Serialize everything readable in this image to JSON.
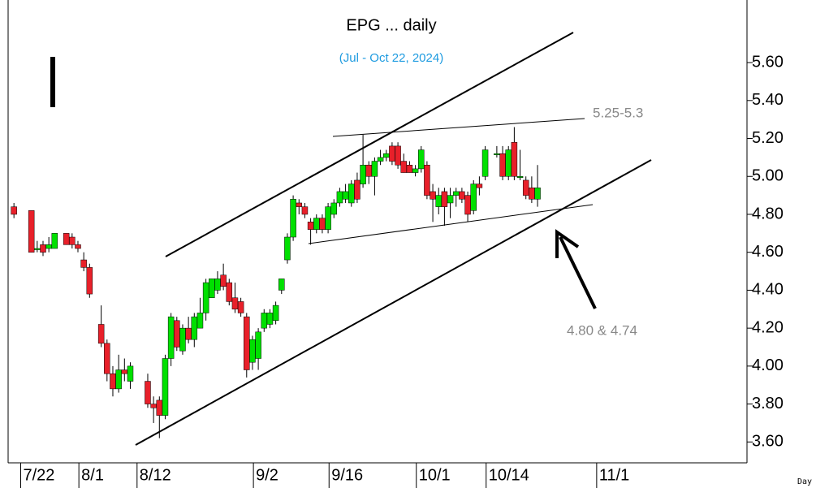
{
  "chart_data": {
    "type": "candlestick",
    "title": "EPG ... daily",
    "subtitle": "(Jul - Oct 22, 2024)",
    "annotations": [
      "5.25-5.3",
      "4.80 & 4.74"
    ],
    "corner_label": "Day",
    "up_color": "#00e000",
    "down_color": "#e8202a",
    "xlim": [
      -2,
      125
    ],
    "ylim": [
      3.49,
      5.93
    ],
    "xticks": [
      {
        "value": 1,
        "label": "7/22"
      },
      {
        "value": 11,
        "label": "8/1"
      },
      {
        "value": 21,
        "label": "8/12"
      },
      {
        "value": 41,
        "label": "9/2"
      },
      {
        "value": 54,
        "label": "9/16"
      },
      {
        "value": 69,
        "label": "10/1"
      },
      {
        "value": 81,
        "label": "10/14"
      },
      {
        "value": 100,
        "label": "11/1"
      }
    ],
    "yticks": [
      {
        "value": 3.6,
        "label": "3.60"
      },
      {
        "value": 3.8,
        "label": "3.80"
      },
      {
        "value": 4.0,
        "label": "4.00"
      },
      {
        "value": 4.2,
        "label": "4.20"
      },
      {
        "value": 4.4,
        "label": "4.40"
      },
      {
        "value": 4.6,
        "label": "4.60"
      },
      {
        "value": 4.8,
        "label": "4.80"
      },
      {
        "value": 5.0,
        "label": "5.00"
      },
      {
        "value": 5.2,
        "label": "5.20"
      },
      {
        "value": 5.4,
        "label": "5.40"
      },
      {
        "value": 5.6,
        "label": "5.60"
      }
    ],
    "x": [
      -1,
      2,
      3,
      4,
      5,
      6,
      8,
      9,
      10,
      11,
      12,
      14,
      15,
      16,
      17,
      18,
      19,
      22,
      23,
      24,
      25,
      26,
      27,
      28,
      29,
      30,
      31,
      32,
      33,
      34,
      35,
      36,
      37,
      38,
      39,
      40,
      41,
      42,
      43,
      44,
      45,
      46,
      47,
      48,
      49,
      50,
      51,
      52,
      53,
      54,
      55,
      56,
      57,
      58,
      59,
      60,
      61,
      62,
      63,
      64,
      65,
      66,
      67,
      68,
      69,
      70,
      71,
      72,
      73,
      74,
      75,
      76,
      77,
      78,
      79,
      80,
      82,
      83,
      84,
      85,
      86,
      87,
      88,
      89
    ],
    "open": [
      4.84,
      4.82,
      4.62,
      4.64,
      4.62,
      4.62,
      4.7,
      4.68,
      4.64,
      4.56,
      4.52,
      4.22,
      4.12,
      3.96,
      3.88,
      3.98,
      3.92,
      3.92,
      3.8,
      3.82,
      3.74,
      4.04,
      4.24,
      4.08,
      4.2,
      4.14,
      4.2,
      4.28,
      4.36,
      4.4,
      4.48,
      4.44,
      4.36,
      4.34,
      4.26,
      4.02,
      4.04,
      4.2,
      4.22,
      4.24,
      4.4,
      4.56,
      4.68,
      4.86,
      4.84,
      4.76,
      4.72,
      4.78,
      4.72,
      4.8,
      4.86,
      4.88,
      4.86,
      4.98,
      4.96,
      5.06,
      5.0,
      5.08,
      5.1,
      5.16,
      5.16,
      5.08,
      5.06,
      5.02,
      5.04,
      5.06,
      4.92,
      4.84,
      4.92,
      4.86,
      4.9,
      4.92,
      4.9,
      4.82,
      4.96,
      5.0,
      5.12,
      5.12,
      5.0,
      5.18,
      5.0,
      4.98,
      4.94,
      4.88
    ],
    "high": [
      4.86,
      4.82,
      4.66,
      4.66,
      4.68,
      4.7,
      4.7,
      4.7,
      4.66,
      4.6,
      4.54,
      4.32,
      4.14,
      4.0,
      4.06,
      4.04,
      4.02,
      3.96,
      3.84,
      3.84,
      4.06,
      4.28,
      4.26,
      4.22,
      4.26,
      4.28,
      4.36,
      4.46,
      4.46,
      4.5,
      4.54,
      4.46,
      4.44,
      4.36,
      4.28,
      4.16,
      4.2,
      4.3,
      4.3,
      4.34,
      4.46,
      4.7,
      4.9,
      4.88,
      4.86,
      4.78,
      4.8,
      4.8,
      4.86,
      4.88,
      4.94,
      4.96,
      4.98,
      5.02,
      5.22,
      5.08,
      5.1,
      5.14,
      5.14,
      5.18,
      5.18,
      5.12,
      5.08,
      5.06,
      5.16,
      5.08,
      4.96,
      4.94,
      4.94,
      4.94,
      4.94,
      4.94,
      4.92,
      4.98,
      5.0,
      5.16,
      5.16,
      5.16,
      5.16,
      5.26,
      5.14,
      5.0,
      5.0,
      5.06
    ],
    "low": [
      4.78,
      4.6,
      4.6,
      4.58,
      4.6,
      4.62,
      4.64,
      4.62,
      4.6,
      4.5,
      4.36,
      4.1,
      3.92,
      3.84,
      3.86,
      3.92,
      3.88,
      3.78,
      3.7,
      3.62,
      3.72,
      4.0,
      4.08,
      4.06,
      4.12,
      4.1,
      4.2,
      4.24,
      4.36,
      4.38,
      4.4,
      4.32,
      4.28,
      4.26,
      3.94,
      3.98,
      3.98,
      4.18,
      4.2,
      4.22,
      4.38,
      4.54,
      4.66,
      4.8,
      4.78,
      4.64,
      4.7,
      4.7,
      4.7,
      4.78,
      4.84,
      4.86,
      4.84,
      4.86,
      4.94,
      4.96,
      4.9,
      5.06,
      5.08,
      5.06,
      5.04,
      5.02,
      5.02,
      5.0,
      5.02,
      4.88,
      4.76,
      4.8,
      4.74,
      4.78,
      4.84,
      4.86,
      4.76,
      4.8,
      4.9,
      4.98,
      5.1,
      4.98,
      4.98,
      4.98,
      4.98,
      4.88,
      4.86,
      4.84
    ],
    "close": [
      4.8,
      4.6,
      4.62,
      4.6,
      4.64,
      4.7,
      4.64,
      4.64,
      4.62,
      4.52,
      4.38,
      4.12,
      3.96,
      3.88,
      3.98,
      3.96,
      4.0,
      3.8,
      3.78,
      3.74,
      4.04,
      4.26,
      4.1,
      4.2,
      4.14,
      4.26,
      4.28,
      4.44,
      4.46,
      4.46,
      4.42,
      4.34,
      4.3,
      4.28,
      3.98,
      4.14,
      4.18,
      4.28,
      4.28,
      4.32,
      4.46,
      4.68,
      4.88,
      4.84,
      4.8,
      4.72,
      4.78,
      4.72,
      4.84,
      4.86,
      4.92,
      4.92,
      4.96,
      4.88,
      5.06,
      5.0,
      5.08,
      5.1,
      5.12,
      5.08,
      5.06,
      5.02,
      5.02,
      5.04,
      5.14,
      4.9,
      4.88,
      4.9,
      4.84,
      4.9,
      4.92,
      4.88,
      4.8,
      4.96,
      4.94,
      5.14,
      5.12,
      5.0,
      5.14,
      5.0,
      5.0,
      4.9,
      4.88,
      4.94
    ]
  }
}
